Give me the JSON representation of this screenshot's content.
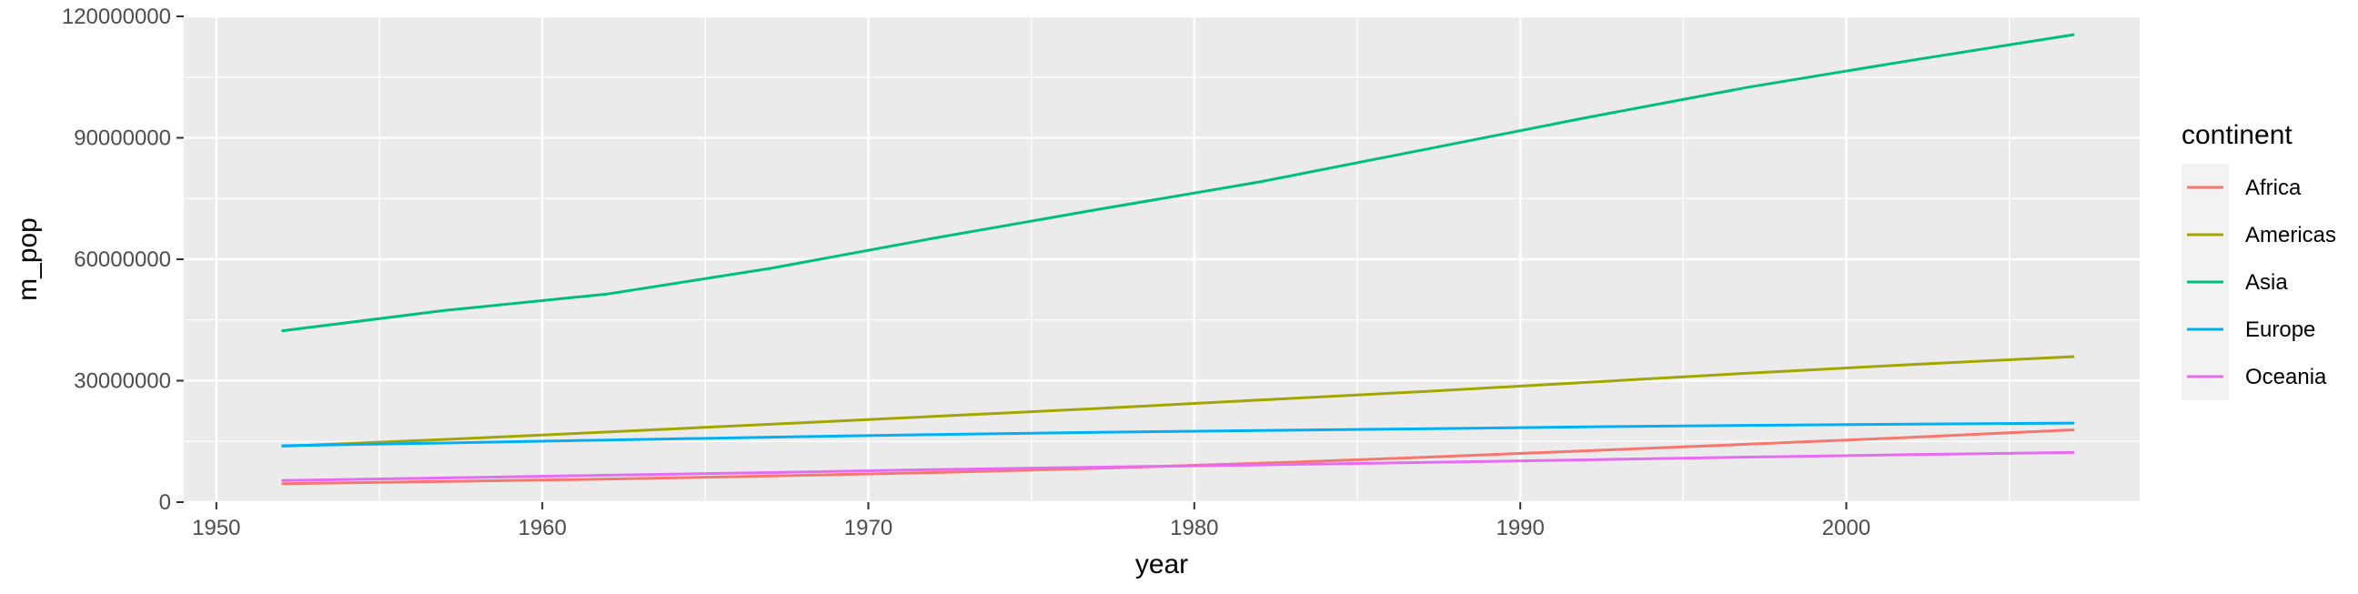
{
  "chart_data": {
    "type": "line",
    "xlabel": "year",
    "ylabel": "m_pop",
    "xlim": [
      1949,
      2009
    ],
    "ylim": [
      0,
      120000000
    ],
    "x_ticks": [
      1950,
      1960,
      1970,
      1980,
      1990,
      2000
    ],
    "y_ticks": [
      0,
      30000000,
      60000000,
      90000000,
      120000000
    ],
    "x_tick_labels": [
      "1950",
      "1960",
      "1970",
      "1980",
      "1990",
      "2000"
    ],
    "y_tick_labels": [
      "0",
      "30000000",
      "60000000",
      "90000000",
      "120000000"
    ],
    "grid": true,
    "legend": {
      "title": "continent",
      "position": "right"
    },
    "x": [
      1952,
      1957,
      1962,
      1967,
      1972,
      1977,
      1982,
      1987,
      1992,
      1997,
      2002,
      2007
    ],
    "series": [
      {
        "name": "Africa",
        "color": "#F8766D",
        "values": [
          4570010,
          5093033,
          5702247,
          6447875,
          7305376,
          8328097,
          9602857,
          11054502,
          12674645,
          14304480,
          16033152,
          17875763
        ]
      },
      {
        "name": "Americas",
        "color": "#A3A500",
        "values": [
          13806098,
          15478157,
          17330810,
          19229865,
          21175368,
          23122708,
          25211637,
          27310159,
          29570964,
          31876016,
          33990910,
          35954847
        ]
      },
      {
        "name": "Asia",
        "color": "#00BF7D",
        "values": [
          42283556,
          47356988,
          51404763,
          57747361,
          65180977,
          72257987,
          79095018,
          87006690,
          94948248,
          102523803,
          109145521,
          115513752
        ]
      },
      {
        "name": "Europe",
        "color": "#00B0F6",
        "values": [
          13937362,
          14596345,
          15345172,
          16039299,
          16687835,
          17238818,
          17708897,
          18103139,
          18604760,
          18964805,
          19274129,
          19536618
        ]
      },
      {
        "name": "Oceania",
        "color": "#E76BF3",
        "values": [
          5343003,
          5970988,
          6641759,
          7300207,
          8053050,
          8619500,
          9197425,
          9787208,
          10459826,
          11120715,
          11727415,
          12274974
        ]
      }
    ]
  }
}
